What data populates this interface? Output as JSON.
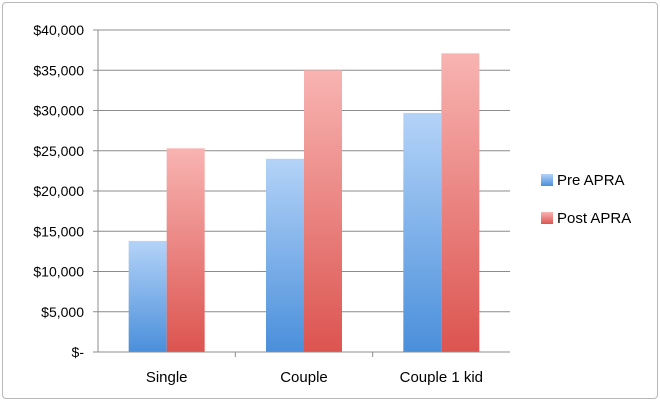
{
  "chart_data": {
    "type": "bar",
    "categories": [
      "Single",
      "Couple",
      "Couple 1 kid"
    ],
    "series": [
      {
        "name": "Pre APRA",
        "values": [
          13800,
          24000,
          29700
        ],
        "color": "#5b9ee0"
      },
      {
        "name": "Post APRA",
        "values": [
          25300,
          35000,
          37100
        ],
        "color": "#e06b66"
      }
    ],
    "ylim": [
      0,
      40000
    ],
    "yticks": [
      0,
      5000,
      10000,
      15000,
      20000,
      25000,
      30000,
      35000,
      40000
    ],
    "ytick_labels": [
      "$-",
      "$5,000",
      "$10,000",
      "$15,000",
      "$20,000",
      "$25,000",
      "$30,000",
      "$35,000",
      "$40,000"
    ],
    "grid": true,
    "legend_position": "right",
    "title": "",
    "xlabel": "",
    "ylabel": ""
  }
}
